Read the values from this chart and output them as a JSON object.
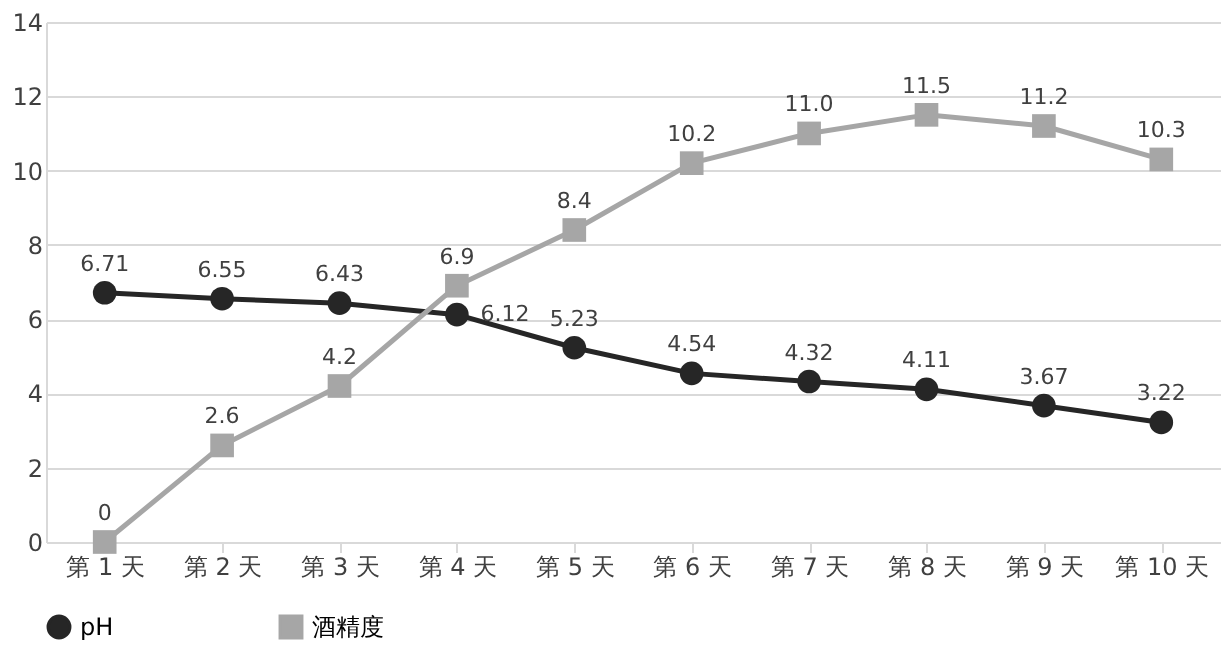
{
  "chart_data": {
    "type": "line",
    "categories": [
      "第 1 天",
      "第 2 天",
      "第 3 天",
      "第 4 天",
      "第 5 天",
      "第 6 天",
      "第 7 天",
      "第 8 天",
      "第 9 天",
      "第 10 天"
    ],
    "series": [
      {
        "name": "pH",
        "color": "#262626",
        "marker": "circle",
        "values": [
          6.71,
          6.55,
          6.43,
          6.12,
          5.23,
          4.54,
          4.32,
          4.11,
          3.67,
          3.22
        ],
        "value_labels": [
          "6.71",
          "6.55",
          "6.43",
          "6.12",
          "5.23",
          "4.54",
          "4.32",
          "4.11",
          "3.67",
          "3.22"
        ]
      },
      {
        "name": "酒精度",
        "color": "#a6a6a6",
        "marker": "square",
        "values": [
          0,
          2.6,
          4.2,
          6.9,
          8.4,
          10.2,
          11.0,
          11.5,
          11.2,
          10.3
        ],
        "value_labels": [
          "0",
          "2.6",
          "4.2",
          "6.9",
          "8.4",
          "10.2",
          "11.0",
          "11.5",
          "11.2",
          "10.3"
        ]
      }
    ],
    "ylim": [
      0,
      14
    ],
    "yticks": [
      0,
      2,
      4,
      6,
      8,
      10,
      12,
      14
    ],
    "grid": "y",
    "legend": "bottom"
  }
}
